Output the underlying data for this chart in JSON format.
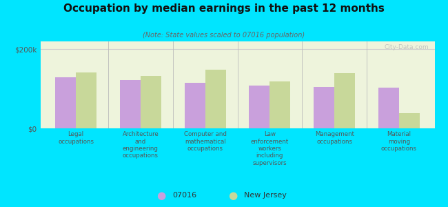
{
  "title": "Occupation by median earnings in the past 12 months",
  "subtitle": "(Note: State values scaled to 07016 population)",
  "categories": [
    "Legal\noccupations",
    "Architecture\nand\nengineering\noccupations",
    "Computer and\nmathematical\noccupations",
    "Law\nenforcement\nworkers\nincluding\nsupervisors",
    "Management\noccupations",
    "Material\nmoving\noccupations"
  ],
  "values_07016": [
    130000,
    122000,
    115000,
    108000,
    105000,
    103000
  ],
  "values_nj": [
    142000,
    132000,
    148000,
    118000,
    140000,
    38000
  ],
  "color_07016": "#c9a0dc",
  "color_nj": "#c8d89a",
  "bar_width": 0.32,
  "ylim": [
    0,
    220000
  ],
  "yticks": [
    0,
    200000
  ],
  "ytick_labels": [
    "$0",
    "$200k"
  ],
  "background_color": "#00e5ff",
  "plot_bg_gradient_top": "#e8f0d0",
  "plot_bg_gradient_bot": "#f5fae8",
  "watermark": "City-Data.com",
  "legend_07016": "07016",
  "legend_nj": "New Jersey"
}
